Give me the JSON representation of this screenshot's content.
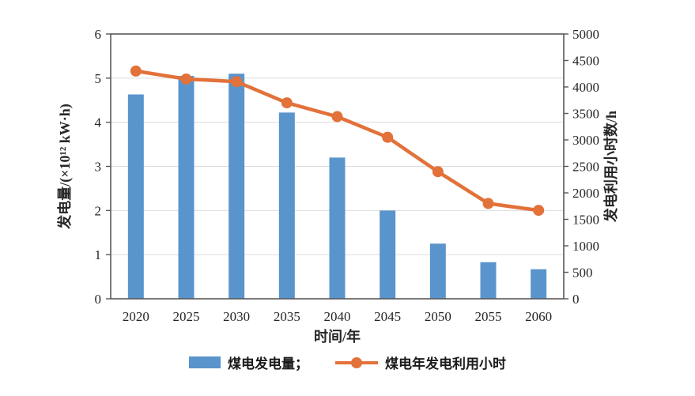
{
  "chart_data": {
    "type": "bar",
    "subtype": "combo-bar-line",
    "title": "",
    "x": {
      "label": "时间/年",
      "categories": [
        "2020",
        "2025",
        "2030",
        "2035",
        "2040",
        "2045",
        "2050",
        "2055",
        "2060"
      ]
    },
    "y_left": {
      "label": "发电量/(×10¹² kW·h)",
      "min": 0,
      "max": 6,
      "step": 1
    },
    "y_right": {
      "label": "发电利用小时数/h",
      "min": 0,
      "max": 5000,
      "step": 500
    },
    "grid": true,
    "legend_position": "bottom",
    "series": [
      {
        "name": "煤电发电量",
        "type": "bar",
        "axis": "left",
        "color": "#5A94CC",
        "values": [
          4.63,
          5.05,
          5.1,
          4.22,
          3.2,
          2.0,
          1.25,
          0.83,
          0.67
        ]
      },
      {
        "name": "煤电年发电利用小时",
        "type": "line",
        "axis": "right",
        "color": "#E2713A",
        "values": [
          4300,
          4150,
          4100,
          3700,
          3440,
          3050,
          2400,
          1800,
          1670
        ]
      }
    ]
  },
  "legend": {
    "items": [
      {
        "label": "煤电发电量；",
        "swatch": "bar-swatch"
      },
      {
        "label": "煤电年发电利用小时",
        "swatch": "line-swatch"
      }
    ]
  },
  "style": {
    "bar_color": "#5A94CC",
    "line_color": "#E2713A",
    "grid_color": "#DCDCDC",
    "axis_color": "#595959",
    "text_color": "#262626",
    "background": "#FFFFFF"
  }
}
